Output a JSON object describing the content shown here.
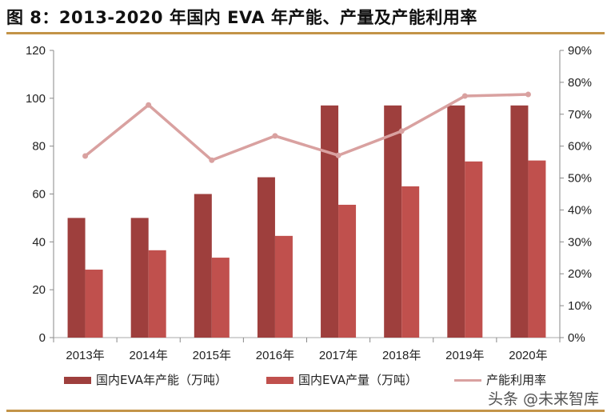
{
  "title": "图 8：2013-2020 年国内 EVA 年产能、产量及产能利用率",
  "watermark": "头条 @未来智库",
  "colors": {
    "capacity": "#9e3f3d",
    "production": "#c0504d",
    "utilization": "#d9a1a0",
    "rule": "#c39448"
  },
  "chart_data": {
    "type": "bar+line",
    "categories": [
      "2013年",
      "2014年",
      "2015年",
      "2016年",
      "2017年",
      "2018年",
      "2019年",
      "2020年"
    ],
    "series": [
      {
        "name": "国内EVA年产能（万吨）",
        "type": "bar",
        "axis": "left",
        "values": [
          50,
          50,
          60,
          67,
          97,
          97,
          97,
          97
        ]
      },
      {
        "name": "国内EVA产量（万吨）",
        "type": "bar",
        "axis": "left",
        "values": [
          28.4,
          36.5,
          33.4,
          42.5,
          55.5,
          63.2,
          73.6,
          74
        ]
      },
      {
        "name": "产能利用率",
        "type": "line",
        "axis": "right",
        "values": [
          56.9,
          72.9,
          55.6,
          63.2,
          57.1,
          64.7,
          75.7,
          76.2
        ]
      }
    ],
    "y_left": {
      "range": [
        0,
        120
      ],
      "ticks": [
        "0",
        "20",
        "40",
        "60",
        "80",
        "100",
        "120"
      ]
    },
    "y_right": {
      "range": [
        0,
        90
      ],
      "ticks": [
        "0%",
        "10%",
        "20%",
        "30%",
        "40%",
        "50%",
        "60%",
        "70%",
        "80%",
        "90%"
      ]
    },
    "grid": false,
    "legend": "bottom"
  }
}
